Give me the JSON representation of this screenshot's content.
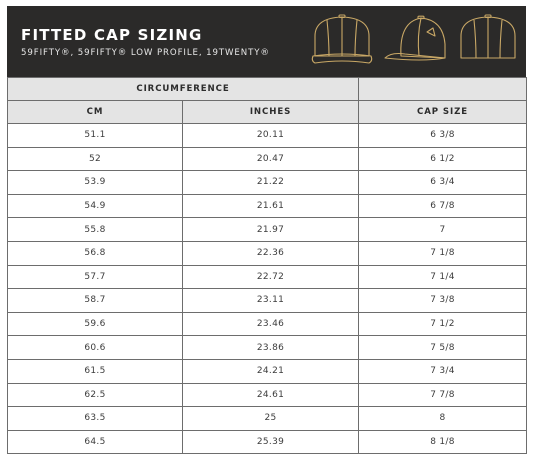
{
  "header": {
    "title": "FITTED CAP SIZING",
    "subtitle": "59FIFTY®, 59FIFTY® LOW PROFILE, 19TWENTY®",
    "icons": [
      "cap-front-icon",
      "cap-side-icon",
      "cap-back-icon"
    ],
    "accent_color": "#c9a866",
    "background_color": "#2b2a29"
  },
  "table": {
    "group_header": "CIRCUMFERENCE",
    "columns": [
      "CM",
      "INCHES",
      "CAP SIZE"
    ],
    "rows": [
      [
        "51.1",
        "20.11",
        "6 3/8"
      ],
      [
        "52",
        "20.47",
        "6 1/2"
      ],
      [
        "53.9",
        "21.22",
        "6 3/4"
      ],
      [
        "54.9",
        "21.61",
        "6 7/8"
      ],
      [
        "55.8",
        "21.97",
        "7"
      ],
      [
        "56.8",
        "22.36",
        "7 1/8"
      ],
      [
        "57.7",
        "22.72",
        "7 1/4"
      ],
      [
        "58.7",
        "23.11",
        "7 3/8"
      ],
      [
        "59.6",
        "23.46",
        "7 1/2"
      ],
      [
        "60.6",
        "23.86",
        "7 5/8"
      ],
      [
        "61.5",
        "24.21",
        "7 3/4"
      ],
      [
        "62.5",
        "24.61",
        "7 7/8"
      ],
      [
        "63.5",
        "25",
        "8"
      ],
      [
        "64.5",
        "25.39",
        "8 1/8"
      ]
    ]
  }
}
